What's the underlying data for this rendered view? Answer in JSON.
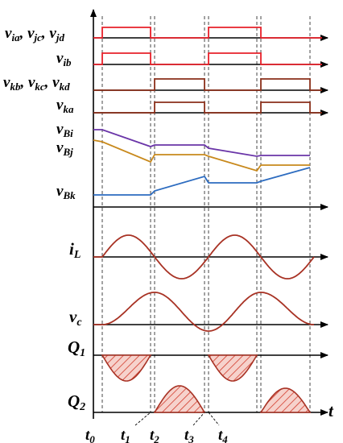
{
  "colors": {
    "axis": "#000000",
    "gate_red": "#e8202a",
    "gate_brown": "#8a2f1a",
    "wave": "#a83224",
    "vbi": "#6a35a8",
    "vbj": "#c8891c",
    "vbk": "#2d6cc0",
    "hatch": "#d23a2a",
    "hatch_fill": "#f6d2cc"
  },
  "labels": {
    "via_vjc_vjd": {
      "text": "v",
      "subs": [
        "ia",
        "jc",
        "jd"
      ]
    },
    "vib": {
      "text": "v",
      "sub": "ib"
    },
    "vkb_vkc_vkd": {
      "text": "v",
      "subs": [
        "kb",
        "kc",
        "kd"
      ]
    },
    "vka": {
      "text": "v",
      "sub": "ka"
    },
    "vbi": {
      "text": "v",
      "sub": "Bi"
    },
    "vbj": {
      "text": "v",
      "sub": "Bj"
    },
    "vbk": {
      "text": "v",
      "sub": "Bk"
    },
    "il": {
      "text": "i",
      "sub": "L"
    },
    "vc": {
      "text": "v",
      "sub": "c"
    },
    "q1": {
      "text": "Q",
      "sub": "1"
    },
    "q2": {
      "text": "Q",
      "sub": "2"
    },
    "time_axis": "t"
  },
  "time_marks": [
    {
      "text": "t",
      "sub": "0"
    },
    {
      "text": "t",
      "sub": "1"
    },
    {
      "text": "t",
      "sub": "2"
    },
    {
      "text": "t",
      "sub": "3"
    },
    {
      "text": "t",
      "sub": "4"
    }
  ]
}
